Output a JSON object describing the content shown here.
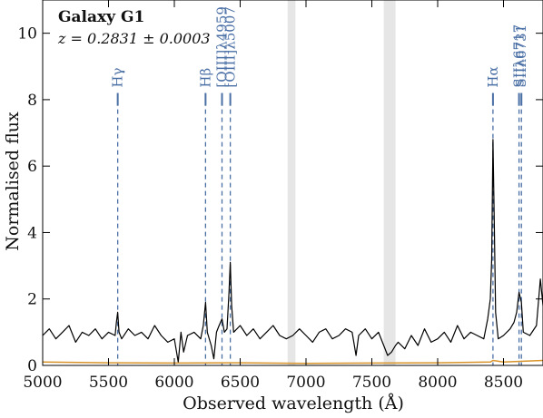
{
  "chart_data": {
    "type": "line",
    "title": "Galaxy G1",
    "subtitle": "z = 0.2831 ± 0.0003",
    "xlabel": "Observed wavelength (Å)",
    "ylabel": "Normalised flux",
    "xlim": [
      5000,
      8800
    ],
    "ylim": [
      0,
      11
    ],
    "x_ticks": [
      5000,
      5500,
      6000,
      6500,
      7000,
      7500,
      8000,
      8500
    ],
    "x_tick_labels": [
      "5000",
      "5500",
      "6000",
      "6500",
      "7000",
      "7500",
      "8000",
      "8500"
    ],
    "y_ticks": [
      0,
      2,
      4,
      6,
      8,
      10
    ],
    "y_tick_labels": [
      "0",
      "2",
      "4",
      "6",
      "8",
      "10"
    ],
    "grid": false,
    "colors": {
      "flux": "#000000",
      "error": "#d8942a",
      "lines": "#4a6fa5",
      "bands": "#e6e6e6"
    },
    "telluric_bands": [
      [
        6860,
        6920
      ],
      [
        7590,
        7680
      ]
    ],
    "emission_lines": [
      {
        "label": "Hγ",
        "wavelength": 5570,
        "top": 8.2
      },
      {
        "label": "Hβ",
        "wavelength": 6237,
        "top": 8.2
      },
      {
        "label": "[OIII]λ4959",
        "wavelength": 6362,
        "top": 8.2
      },
      {
        "label": "[OIII]λ5007",
        "wavelength": 6425,
        "top": 8.2
      },
      {
        "label": "Hα",
        "wavelength": 8420,
        "top": 8.2
      },
      {
        "label": "SIIλ6717",
        "wavelength": 8618,
        "top": 8.2
      },
      {
        "label": "SIIλ6731",
        "wavelength": 8636,
        "top": 8.2
      }
    ],
    "series": [
      {
        "values": {
          "x": [
            5000,
            5050,
            5100,
            5150,
            5200,
            5250,
            5300,
            5350,
            5400,
            5450,
            5500,
            5550,
            5560,
            5570,
            5580,
            5600,
            5650,
            5700,
            5750,
            5800,
            5850,
            5900,
            5950,
            6000,
            6030,
            6050,
            6070,
            6100,
            6150,
            6200,
            6220,
            6237,
            6250,
            6280,
            6300,
            6320,
            6340,
            6362,
            6380,
            6400,
            6415,
            6425,
            6435,
            6450,
            6500,
            6550,
            6600,
            6650,
            6700,
            6750,
            6800,
            6850,
            6900,
            6950,
            7000,
            7050,
            7100,
            7150,
            7200,
            7250,
            7300,
            7350,
            7380,
            7400,
            7450,
            7500,
            7550,
            7590,
            7620,
            7650,
            7680,
            7700,
            7750,
            7800,
            7850,
            7900,
            7950,
            8000,
            8050,
            8100,
            8150,
            8200,
            8250,
            8300,
            8350,
            8380,
            8400,
            8410,
            8420,
            8430,
            8440,
            8460,
            8500,
            8550,
            8580,
            8600,
            8618,
            8636,
            8650,
            8700,
            8750,
            8780,
            8800
          ],
          "y": [
            0.9,
            1.1,
            0.8,
            1.0,
            1.2,
            0.7,
            1.0,
            0.9,
            1.1,
            0.8,
            1.0,
            0.9,
            1.3,
            1.6,
            1.0,
            0.8,
            1.1,
            0.9,
            1.0,
            0.8,
            1.2,
            0.9,
            0.7,
            0.8,
            0.1,
            1.0,
            0.4,
            0.9,
            1.0,
            0.8,
            1.2,
            1.9,
            1.0,
            0.6,
            0.2,
            1.0,
            1.2,
            1.4,
            1.0,
            1.1,
            2.2,
            3.1,
            1.8,
            1.0,
            1.2,
            0.9,
            1.1,
            0.8,
            1.0,
            1.2,
            0.9,
            0.8,
            0.9,
            1.1,
            0.9,
            0.7,
            1.0,
            1.1,
            0.8,
            0.9,
            1.1,
            1.0,
            0.3,
            0.9,
            1.1,
            0.8,
            1.0,
            0.6,
            0.3,
            0.4,
            0.6,
            0.7,
            0.5,
            0.9,
            0.6,
            1.1,
            0.7,
            0.8,
            1.0,
            0.7,
            1.2,
            0.8,
            1.0,
            0.9,
            0.8,
            1.4,
            2.0,
            3.2,
            6.8,
            4.2,
            1.6,
            0.8,
            0.9,
            1.1,
            1.3,
            1.6,
            2.2,
            1.9,
            1.0,
            0.9,
            1.2,
            2.6,
            1.8
          ]
        },
        "role": "flux"
      },
      {
        "values": {
          "x": [
            5000,
            5500,
            6000,
            6500,
            7000,
            7500,
            8000,
            8400,
            8420,
            8500,
            8800
          ],
          "y": [
            0.1,
            0.08,
            0.07,
            0.08,
            0.06,
            0.07,
            0.08,
            0.1,
            0.15,
            0.1,
            0.15
          ]
        },
        "role": "error"
      }
    ]
  }
}
